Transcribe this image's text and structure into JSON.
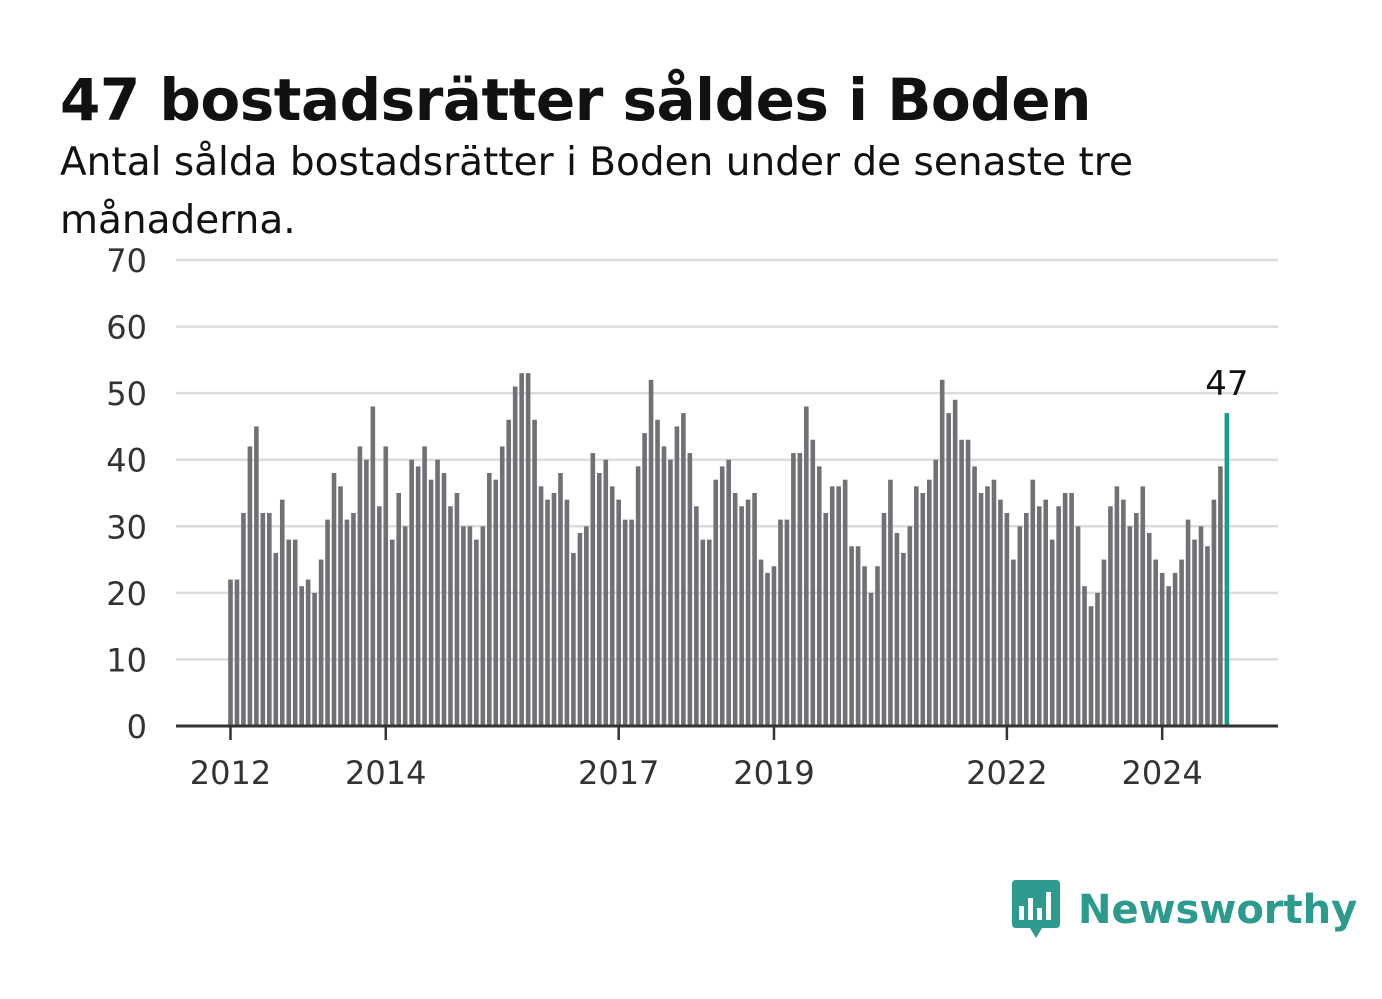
{
  "header": {
    "title": "47 bostadsrätter såldes i Boden",
    "subtitle": "Antal sålda bostadsrätter i Boden under de senaste tre månaderna."
  },
  "brand": {
    "name": "Newsworthy",
    "logo_icon": "chart-speech-bubble-icon",
    "color": "#2c9a8c"
  },
  "colors": {
    "bar": "#707075",
    "highlight": "#179b8d",
    "grid": "#dcdcdc",
    "axis": "#333333",
    "tick_text": "#333333"
  },
  "chart_data": {
    "type": "bar",
    "x_start": "2012-01",
    "x_step": "month",
    "ylim": [
      0,
      70
    ],
    "yticks": [
      0,
      10,
      20,
      30,
      40,
      50,
      60,
      70
    ],
    "xticks": [
      "2012",
      "2014",
      "2017",
      "2019",
      "2022",
      "2024"
    ],
    "grid": true,
    "highlight_label": "47",
    "values": [
      22,
      22,
      32,
      42,
      45,
      32,
      32,
      26,
      34,
      28,
      28,
      21,
      22,
      20,
      25,
      31,
      38,
      36,
      31,
      32,
      42,
      40,
      48,
      33,
      42,
      28,
      35,
      30,
      40,
      39,
      42,
      37,
      40,
      38,
      33,
      35,
      30,
      30,
      28,
      30,
      38,
      37,
      42,
      46,
      51,
      53,
      53,
      46,
      36,
      34,
      35,
      38,
      34,
      26,
      29,
      30,
      41,
      38,
      40,
      36,
      34,
      31,
      31,
      39,
      44,
      52,
      46,
      42,
      40,
      45,
      47,
      41,
      33,
      28,
      28,
      37,
      39,
      40,
      35,
      33,
      34,
      35,
      25,
      23,
      24,
      31,
      31,
      41,
      41,
      48,
      43,
      39,
      32,
      36,
      36,
      37,
      27,
      27,
      24,
      20,
      24,
      32,
      37,
      29,
      26,
      30,
      36,
      35,
      37,
      40,
      52,
      47,
      49,
      43,
      43,
      39,
      35,
      36,
      37,
      34,
      32,
      25,
      30,
      32,
      37,
      33,
      34,
      28,
      33,
      35,
      35,
      30,
      21,
      18,
      20,
      25,
      33,
      36,
      34,
      30,
      32,
      36,
      29,
      25,
      23,
      21,
      23,
      25,
      31,
      28,
      30,
      27,
      34,
      39,
      47
    ]
  }
}
